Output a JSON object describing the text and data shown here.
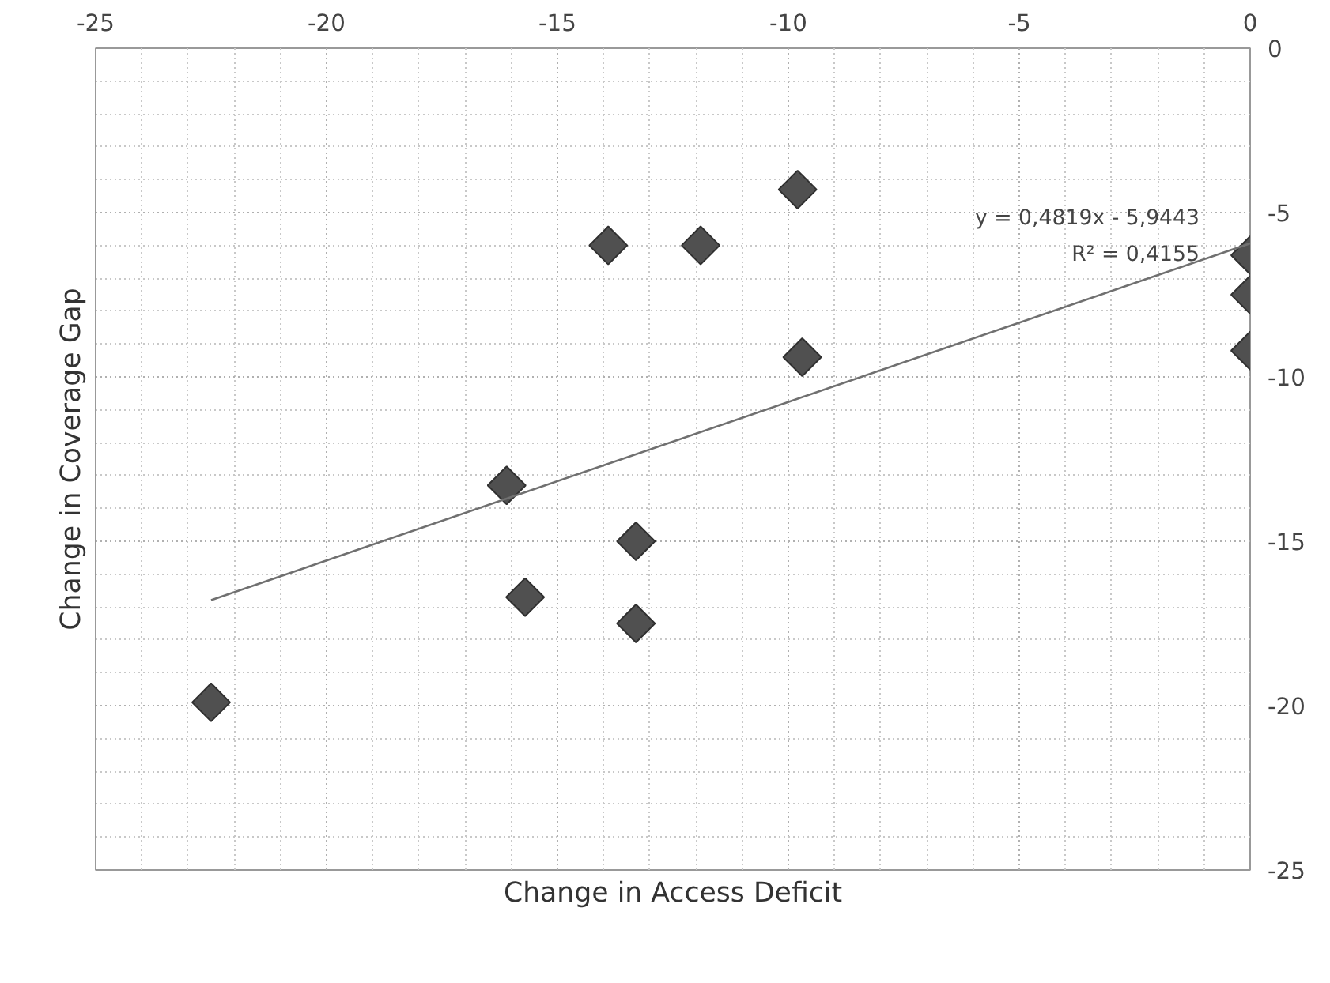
{
  "chart_data": {
    "type": "scatter",
    "xlabel": "Change in Access Deficit",
    "ylabel": "Change in Coverage Gap",
    "xlim": [
      -25,
      0
    ],
    "ylim": [
      -25,
      0
    ],
    "xticks": [
      -25,
      -20,
      -15,
      -10,
      -5,
      0
    ],
    "yticks": [
      -25,
      -20,
      -15,
      -10,
      -5,
      0
    ],
    "grid": true,
    "marker": "diamond",
    "annotations": [
      "y = 0,4819x - 5,9443",
      "R² = 0,4155"
    ],
    "series": [
      {
        "color": "#505050",
        "x": [
          -22.5,
          -16.1,
          -15.7,
          -13.9,
          -13.3,
          -13.3,
          -11.9,
          -9.8,
          -9.7,
          0,
          0,
          0
        ],
        "values": [
          -19.9,
          -13.3,
          -16.7,
          -6.0,
          -15.0,
          -17.5,
          -6.0,
          -4.3,
          -9.4,
          -6.3,
          -7.5,
          -9.2
        ]
      },
      {
        "type": "line",
        "color": "#707070",
        "x": [
          -22.5,
          0
        ],
        "values": [
          -16.79,
          -5.94
        ],
        "marker": "none"
      }
    ]
  }
}
